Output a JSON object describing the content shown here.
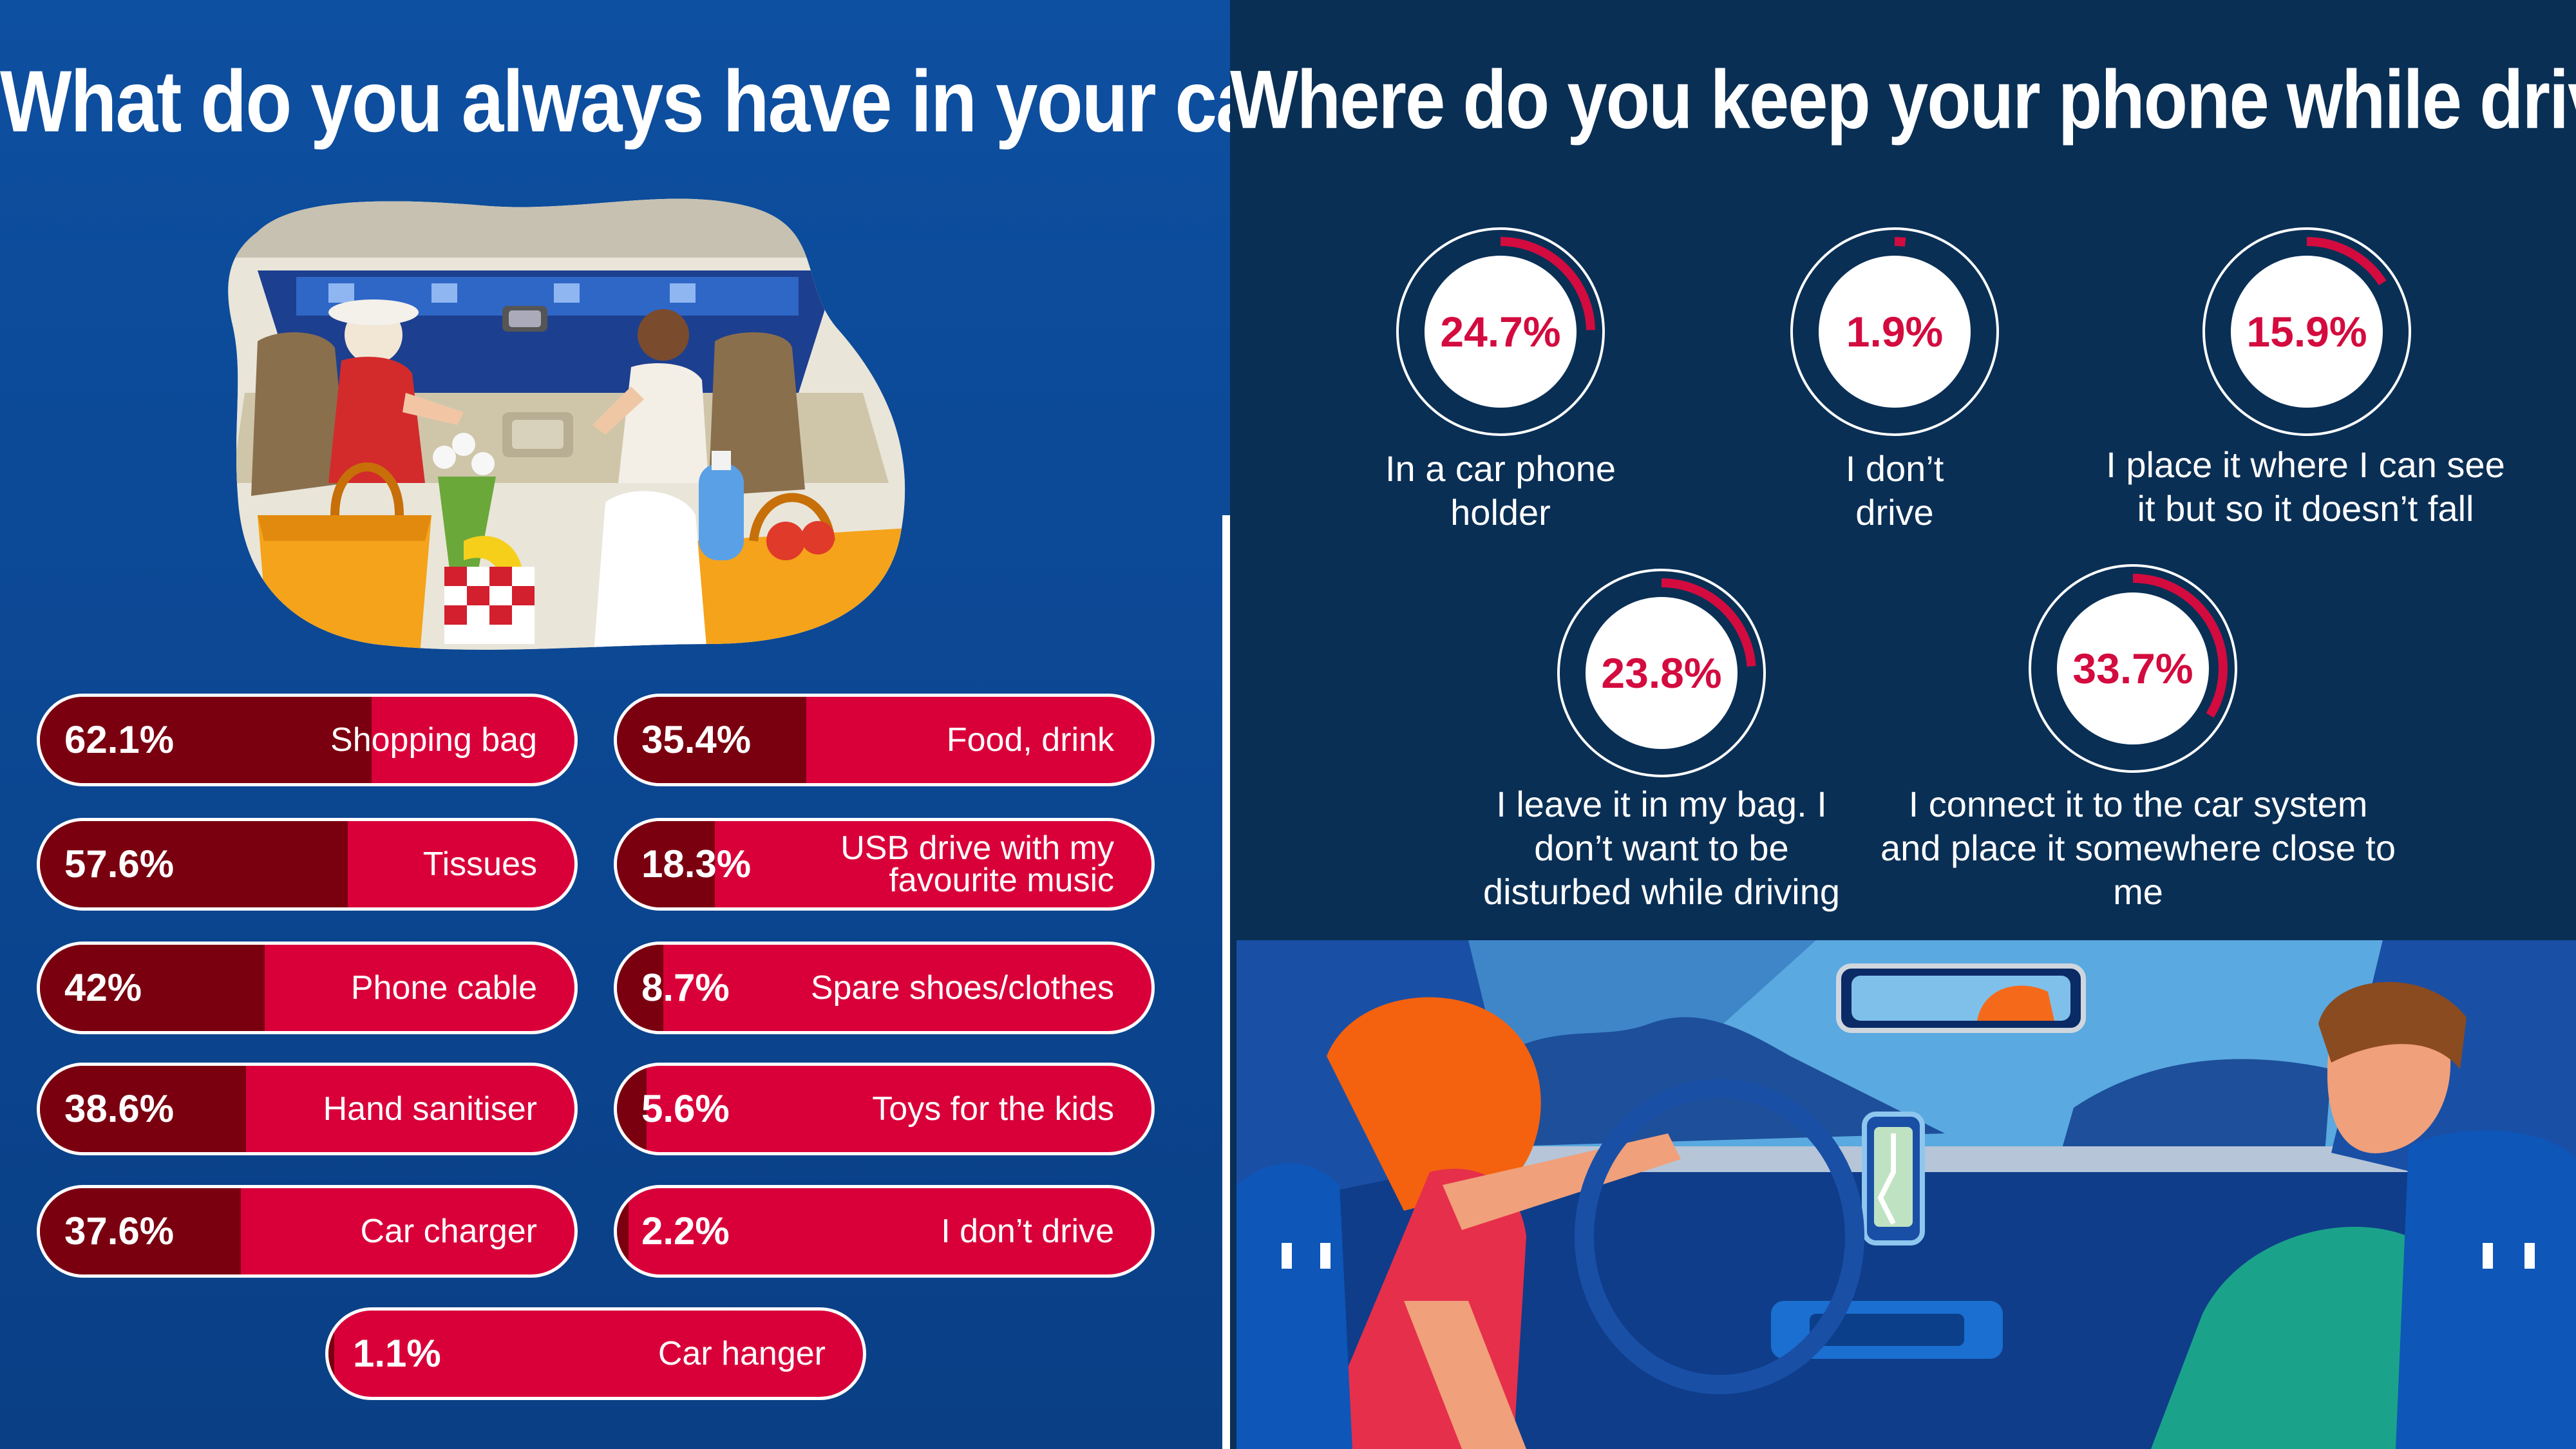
{
  "left": {
    "title": "What do you always have in your car?"
  },
  "right": {
    "title": "Where do you keep your phone while driving?"
  },
  "colors": {
    "left_bg": "#0d4fa0",
    "right_bg": "#0a2f55",
    "bar_light": "#d9003a",
    "bar_dark": "#7a0010",
    "donut_accent": "#d30b3f"
  },
  "chart_data": [
    {
      "type": "bar",
      "title": "What do you always have in your car?",
      "unit": "%",
      "xlim": [
        0,
        100
      ],
      "items": [
        {
          "label": "Shopping bag",
          "value": 62.1,
          "value_label": "62.1%"
        },
        {
          "label": "Tissues",
          "value": 57.6,
          "value_label": "57.6%"
        },
        {
          "label": "Phone cable",
          "value": 42,
          "value_label": "42%"
        },
        {
          "label": "Hand sanitiser",
          "value": 38.6,
          "value_label": "38.6%"
        },
        {
          "label": "Car charger",
          "value": 37.6,
          "value_label": "37.6%"
        },
        {
          "label": "Food, drink",
          "value": 35.4,
          "value_label": "35.4%"
        },
        {
          "label": "USB drive with my favourite music",
          "value": 18.3,
          "value_label": "18.3%"
        },
        {
          "label": "Spare shoes/clothes",
          "value": 8.7,
          "value_label": "8.7%"
        },
        {
          "label": "Toys for the kids",
          "value": 5.6,
          "value_label": "5.6%"
        },
        {
          "label": "I don’t drive",
          "value": 2.2,
          "value_label": "2.2%"
        },
        {
          "label": "Car hanger",
          "value": 1.1,
          "value_label": "1.1%"
        }
      ]
    },
    {
      "type": "pie",
      "title": "Where do you keep your phone while driving?",
      "unit": "%",
      "items": [
        {
          "label": "In a car phone holder",
          "value": 24.7,
          "value_label": "24.7%"
        },
        {
          "label": "I don’t drive",
          "value": 1.9,
          "value_label": "1.9%"
        },
        {
          "label": "I place it where I can see it but so it doesn’t fall",
          "value": 15.9,
          "value_label": "15.9%"
        },
        {
          "label": "I leave it in my bag. I don’t want to be disturbed while driving",
          "value": 23.8,
          "value_label": "23.8%"
        },
        {
          "label": "I connect it to the car system and place it somewhere close to me",
          "value": 33.7,
          "value_label": "33.7%"
        }
      ]
    }
  ]
}
